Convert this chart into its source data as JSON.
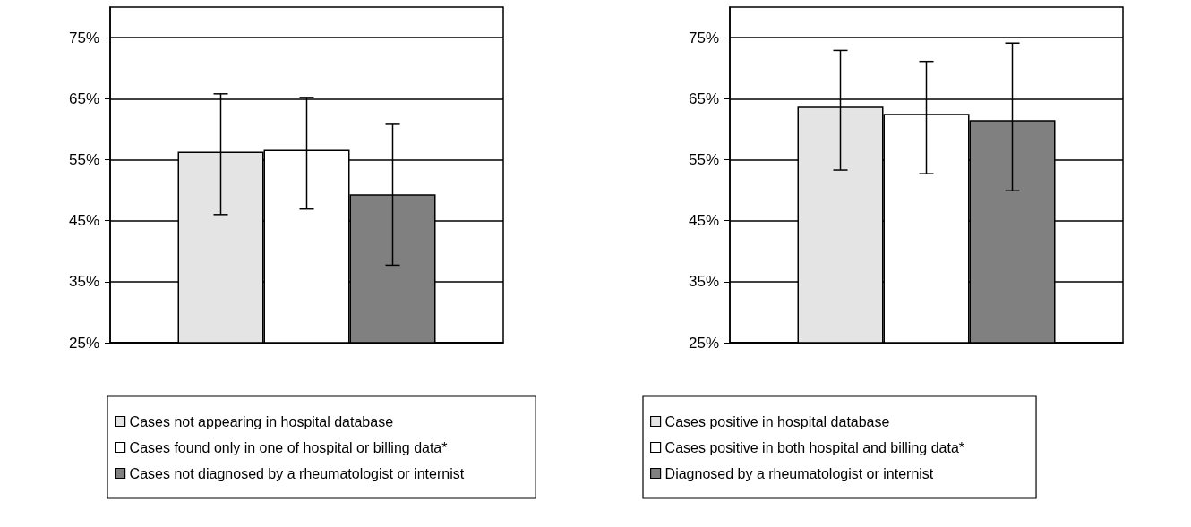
{
  "chart_data": [
    {
      "type": "bar",
      "categories": [
        null
      ],
      "ylim": [
        25,
        80
      ],
      "yticks": [
        {
          "value": 25,
          "label": "25%"
        },
        {
          "value": 35,
          "label": "35%"
        },
        {
          "value": 45,
          "label": "45%"
        },
        {
          "value": 55,
          "label": "55%"
        },
        {
          "value": 65,
          "label": "65%"
        },
        {
          "value": 75,
          "label": "75%"
        }
      ],
      "grid": "y",
      "legend": "bottom",
      "series": [
        {
          "name": "Cases not appearing in hospital database",
          "color": "#e4e4e4",
          "values": [
            56.3
          ],
          "errors": [
            [
              46.0,
              65.8
            ]
          ]
        },
        {
          "name": "Cases found only in one of hospital or billing data*",
          "color": "#ffffff",
          "values": [
            56.6
          ],
          "errors": [
            [
              46.9,
              65.2
            ]
          ]
        },
        {
          "name": "Cases not diagnosed by a rheumatologist or internist",
          "color": "#808080",
          "values": [
            49.3
          ],
          "errors": [
            [
              37.7,
              60.8
            ]
          ]
        }
      ]
    },
    {
      "type": "bar",
      "categories": [
        null
      ],
      "ylim": [
        25,
        80
      ],
      "yticks": [
        {
          "value": 25,
          "label": "25%"
        },
        {
          "value": 35,
          "label": "35%"
        },
        {
          "value": 45,
          "label": "45%"
        },
        {
          "value": 55,
          "label": "55%"
        },
        {
          "value": 65,
          "label": "65%"
        },
        {
          "value": 75,
          "label": "75%"
        }
      ],
      "grid": "y",
      "legend": "bottom",
      "series": [
        {
          "name": "Cases positive in hospital database",
          "color": "#e4e4e4",
          "values": [
            63.7
          ],
          "errors": [
            [
              53.3,
              72.9
            ]
          ]
        },
        {
          "name": "Cases positive in both hospital and billing data*",
          "color": "#ffffff",
          "values": [
            62.5
          ],
          "errors": [
            [
              52.7,
              71.1
            ]
          ]
        },
        {
          "name": "Diagnosed by a rheumatologist or internist",
          "color": "#808080",
          "values": [
            61.5
          ],
          "errors": [
            [
              49.9,
              74.1
            ]
          ]
        }
      ]
    }
  ]
}
